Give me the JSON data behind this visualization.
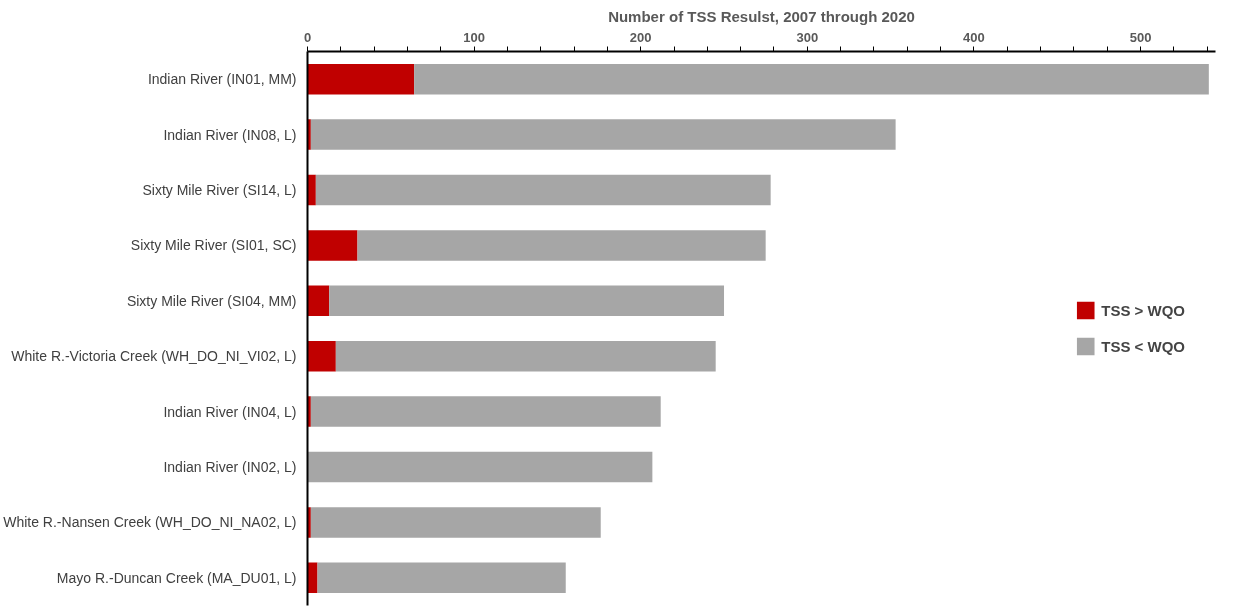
{
  "chart_data": {
    "type": "bar",
    "orientation": "horizontal",
    "stacked": true,
    "title": "Number of TSS Resulst, 2007 through 2020",
    "categories": [
      "Indian River (IN01, MM)",
      "Indian River (IN08, L)",
      "Sixty Mile River (SI14, L)",
      "Sixty Mile River (SI01, SC)",
      "Sixty Mile River (SI04, MM)",
      "White R.-Victoria Creek (WH_DO_NI_VI02, L)",
      "Indian River (IN04, L)",
      "Indian River (IN02, L)",
      "White R.-Nansen Creek (WH_DO_NI_NA02, L)",
      "Mayo R.-Duncan Creek (MA_DU01, L)"
    ],
    "series": [
      {
        "name": "TSS > WQO",
        "color": "#c00000",
        "values": [
          64,
          2,
          5,
          30,
          13,
          17,
          2,
          null,
          2,
          6
        ]
      },
      {
        "name": "TSS < WQO",
        "color": "#a6a6a6",
        "values": [
          477,
          351,
          273,
          245,
          237,
          228,
          210,
          207,
          174,
          149
        ]
      }
    ],
    "xlim": [
      0,
      545
    ],
    "xticks": [
      0,
      {
        "value": 20,
        "label": null
      },
      {
        "value": 40,
        "label": null
      },
      {
        "value": 60,
        "label": null
      },
      {
        "value": 80,
        "label": null
      },
      100,
      {
        "value": 120,
        "label": null
      },
      {
        "value": 140,
        "label": null
      },
      {
        "value": 160,
        "label": null
      },
      {
        "value": 180,
        "label": null
      },
      200,
      {
        "value": 220,
        "label": null
      },
      {
        "value": 240,
        "label": null
      },
      {
        "value": 260,
        "label": null
      },
      {
        "value": 280,
        "label": null
      },
      300,
      {
        "value": 320,
        "label": null
      },
      {
        "value": 340,
        "label": null
      },
      {
        "value": 360,
        "label": null
      },
      {
        "value": 380,
        "label": null
      },
      400,
      {
        "value": 420,
        "label": null
      },
      {
        "value": 440,
        "label": null
      },
      {
        "value": 460,
        "label": null
      },
      {
        "value": 480,
        "label": null
      },
      500,
      {
        "value": 520,
        "label": null
      },
      {
        "value": 540,
        "label": null
      }
    ],
    "grid": false,
    "legend": "right"
  }
}
